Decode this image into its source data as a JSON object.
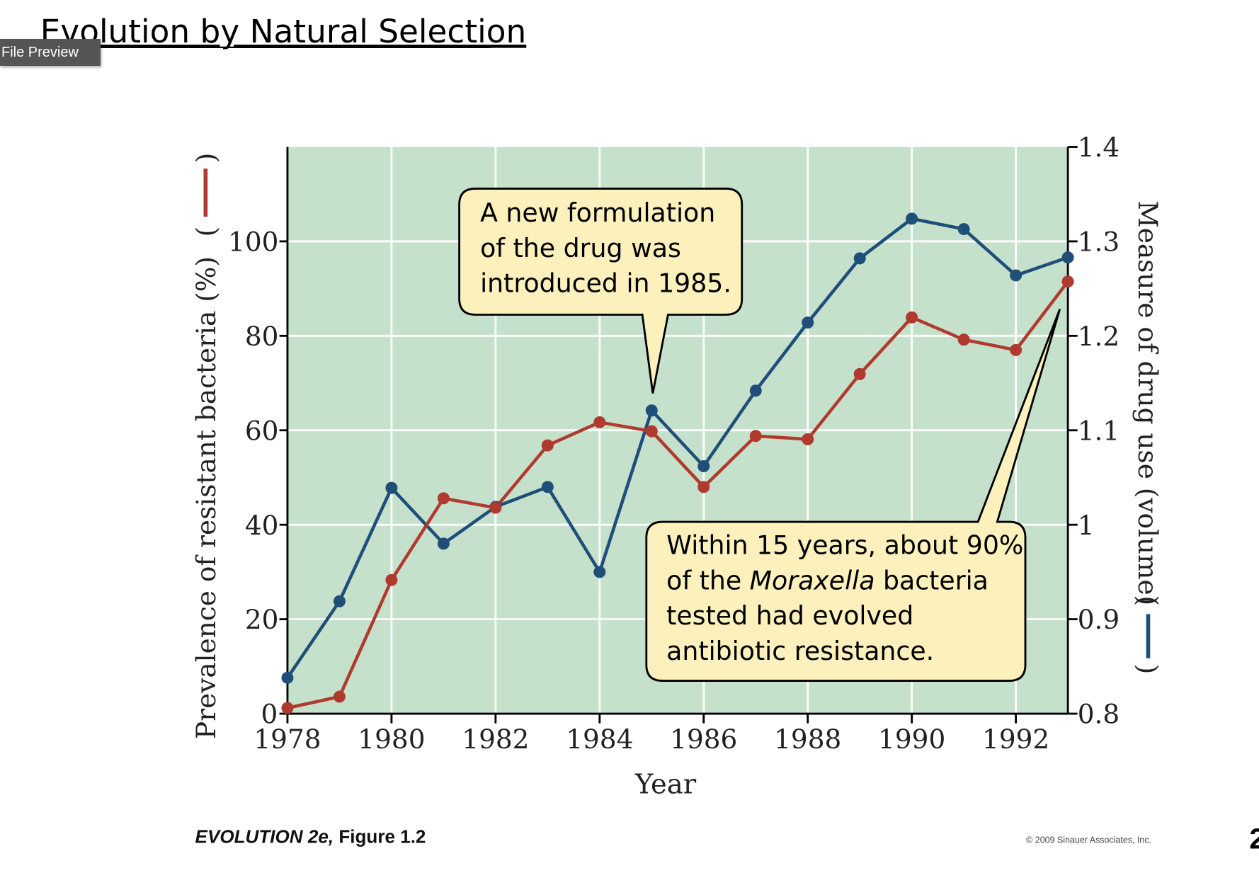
{
  "slide": {
    "title": "Evolution by Natural Selection",
    "tooltip": "File Preview",
    "figure_caption_bold": "EVOLUTION 2e,",
    "figure_caption_rest": " Figure 1.2",
    "copyright": "© 2009 Sinauer Associates, Inc.",
    "page_number_partial": "2"
  },
  "colors": {
    "plot_bg": "#c5e0cb",
    "resistance": "#b03a2e",
    "drug_use": "#1f4e79",
    "callout_fill": "#fcf0bd"
  },
  "callouts": {
    "first": [
      "A new formulation",
      "of the drug was",
      "introduced in 1985."
    ],
    "second": {
      "line1": "Within 15 years, about 90%",
      "line2_pre": "of the ",
      "line2_italic": "Moraxella",
      "line2_post": " bacteria",
      "line3": "tested had evolved",
      "line4": "antibiotic resistance."
    }
  },
  "chart_data": {
    "type": "line",
    "title": "",
    "xlabel": "Year",
    "ylabel": "Prevalence of resistant bacteria (%)",
    "ylabel_right": "Measure of drug use (volume)",
    "xlim": [
      1978,
      1993
    ],
    "ylim": [
      0,
      120
    ],
    "ylim_right": [
      0.8,
      1.4
    ],
    "x_ticks": [
      "1978",
      "1980",
      "1982",
      "1984",
      "1986",
      "1988",
      "1990",
      "1992"
    ],
    "y_ticks": [
      "0",
      "20",
      "40",
      "60",
      "80",
      "100"
    ],
    "y_ticks_right": [
      "0.8",
      "0.9",
      "1",
      "1.1",
      "1.2",
      "1.3",
      "1.4"
    ],
    "grid": true,
    "x": [
      1978,
      1979,
      1980,
      1981,
      1982,
      1983,
      1984,
      1985,
      1986,
      1987,
      1988,
      1989,
      1990,
      1991,
      1992,
      1993
    ],
    "series": [
      {
        "name": "Prevalence of resistant bacteria (%)",
        "axis": "left",
        "color": "#b03a2e",
        "values": [
          1.2,
          3.6,
          28.3,
          45.6,
          43.6,
          56.8,
          61.7,
          59.8,
          48.0,
          58.8,
          58.1,
          71.9,
          83.9,
          79.2,
          77.0,
          91.5
        ]
      },
      {
        "name": "Measure of drug use (volume)",
        "axis": "right",
        "color": "#1f4e79",
        "values": [
          0.838,
          0.919,
          1.039,
          0.98,
          1.019,
          1.04,
          0.95,
          1.121,
          1.062,
          1.142,
          1.214,
          1.282,
          1.324,
          1.313,
          1.264,
          1.283
        ]
      }
    ]
  }
}
